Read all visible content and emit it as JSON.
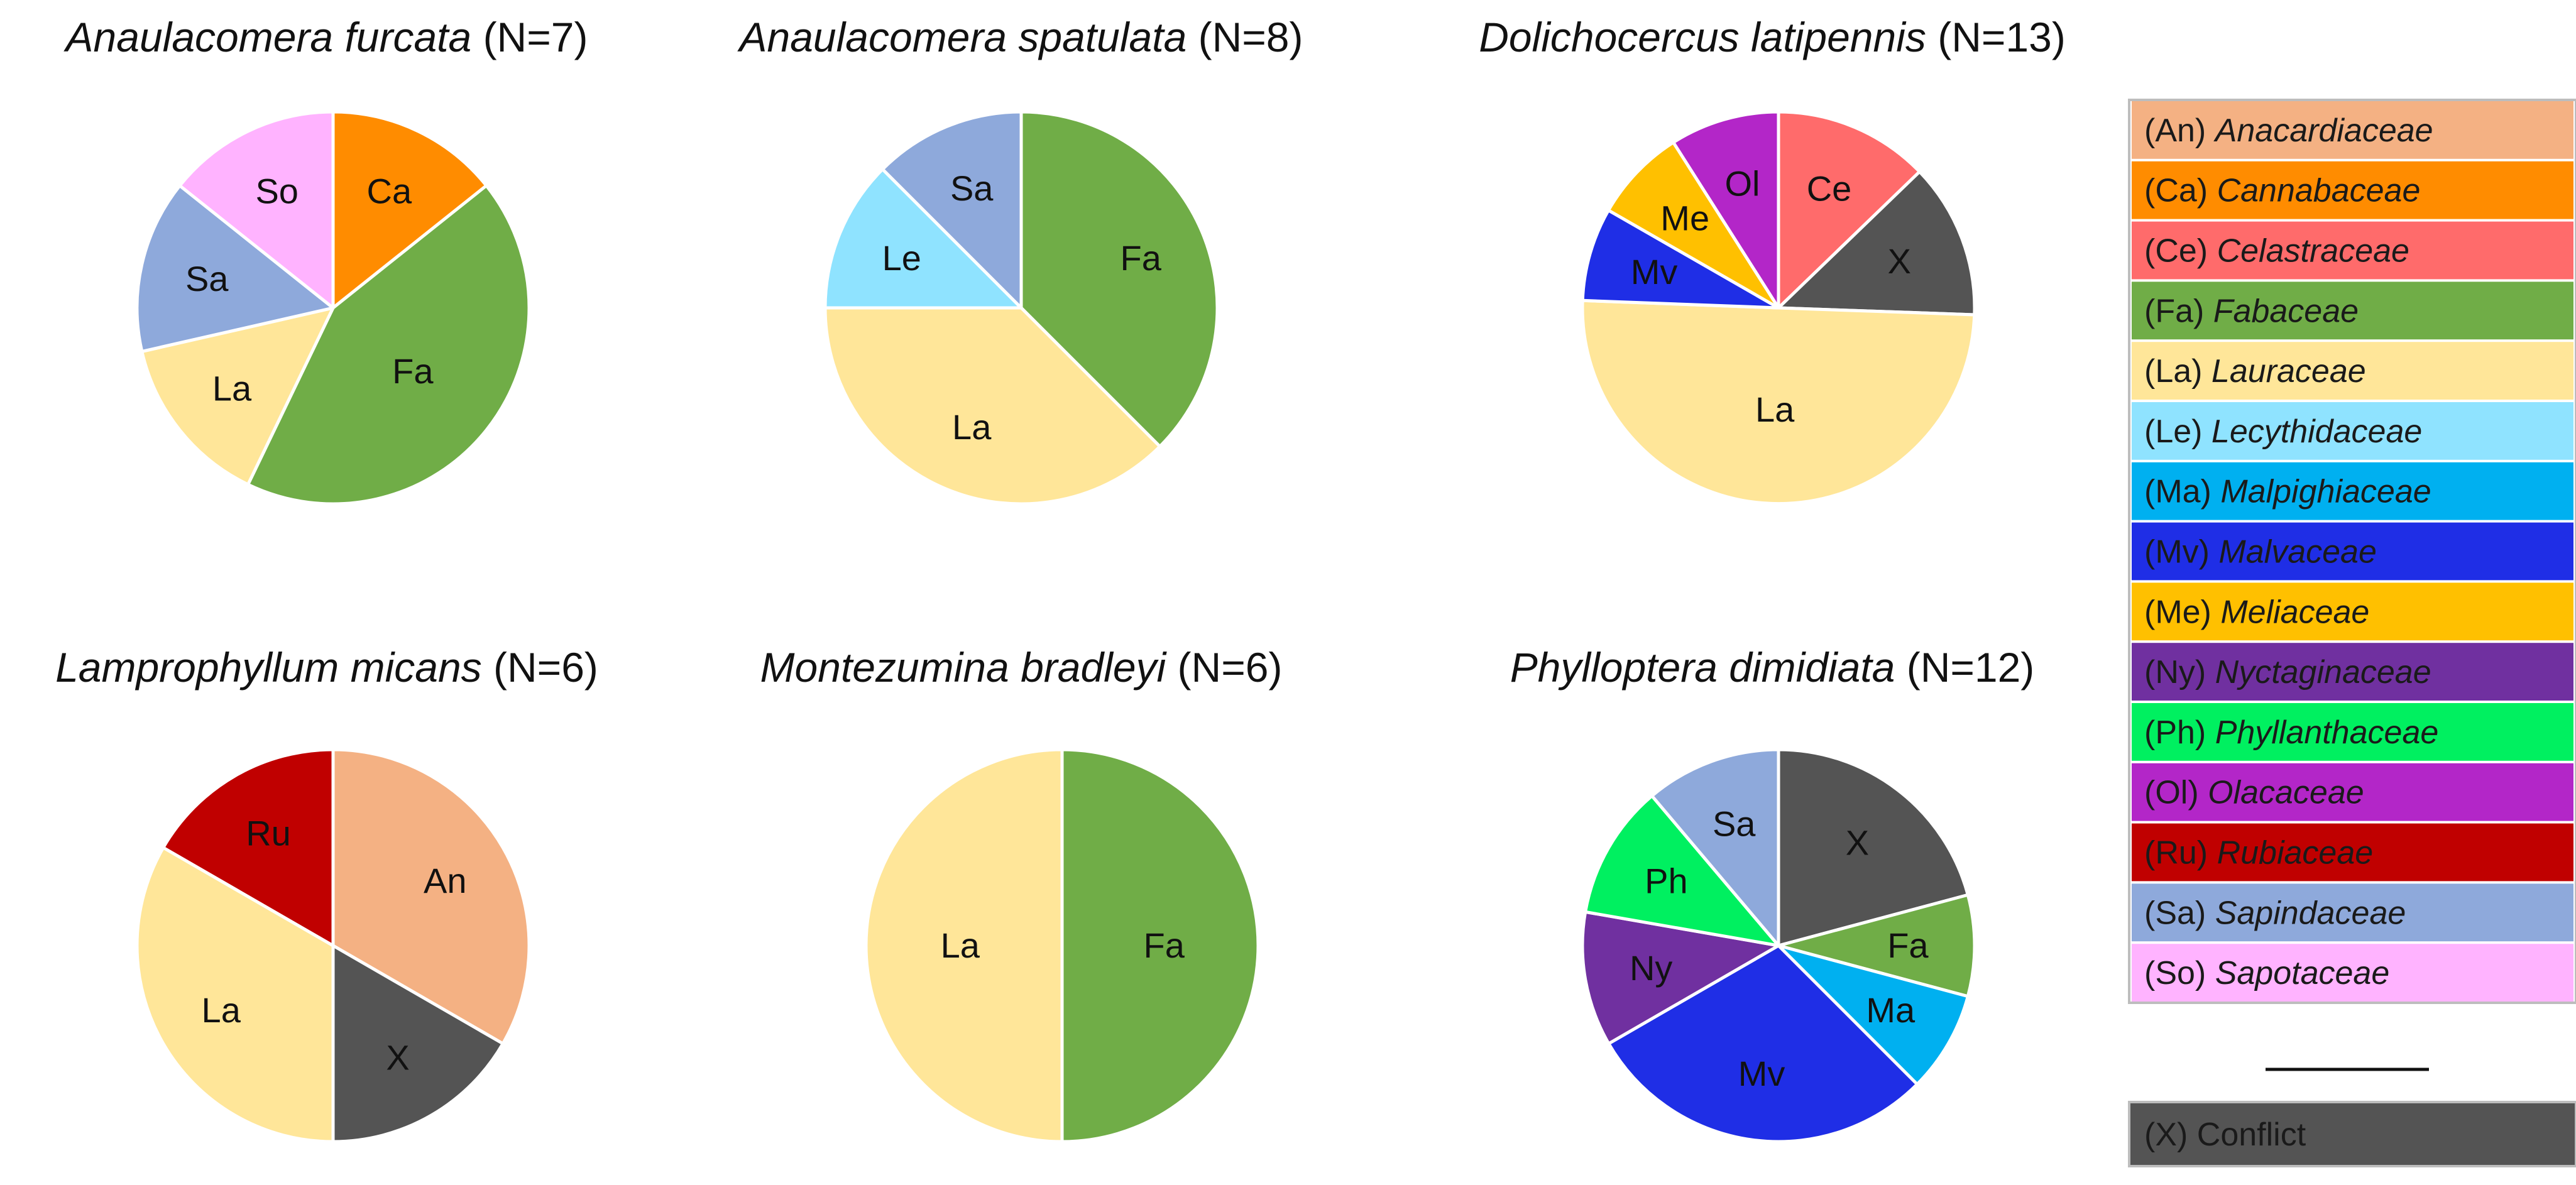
{
  "chart_data": [
    {
      "type": "pie",
      "title": "Anaulacomera furcata",
      "n_label": "(N=7)",
      "slices": [
        {
          "code": "Ca",
          "value": 1
        },
        {
          "code": "Fa",
          "value": 3
        },
        {
          "code": "La",
          "value": 1
        },
        {
          "code": "Sa",
          "value": 1
        },
        {
          "code": "So",
          "value": 1
        }
      ]
    },
    {
      "type": "pie",
      "title": "Anaulacomera spatulata",
      "n_label": "(N=8)",
      "slices": [
        {
          "code": "Fa",
          "value": 3
        },
        {
          "code": "La",
          "value": 3
        },
        {
          "code": "Le",
          "value": 1
        },
        {
          "code": "Sa",
          "value": 1
        }
      ]
    },
    {
      "type": "pie",
      "title": "Dolichocercus latipennis",
      "n_label": "(N=13)",
      "slices": [
        {
          "code": "Ce",
          "value": 1.66
        },
        {
          "code": "X",
          "value": 1.66
        },
        {
          "code": "La",
          "value": 6.5
        },
        {
          "code": "Mv",
          "value": 1
        },
        {
          "code": "Me",
          "value": 1
        },
        {
          "code": "Ol",
          "value": 1.17
        }
      ]
    },
    {
      "type": "pie",
      "title": "Lamprophyllum micans",
      "n_label": "(N=6)",
      "slices": [
        {
          "code": "An",
          "value": 2
        },
        {
          "code": "X",
          "value": 1
        },
        {
          "code": "La",
          "value": 2
        },
        {
          "code": "Ru",
          "value": 1
        }
      ]
    },
    {
      "type": "pie",
      "title": "Montezumina bradleyi",
      "n_label": "(N=6)",
      "slices": [
        {
          "code": "Fa",
          "value": 3
        },
        {
          "code": "La",
          "value": 3
        }
      ]
    },
    {
      "type": "pie",
      "title": "Phylloptera dimidiata",
      "n_label": "(N=12)",
      "slices": [
        {
          "code": "X",
          "value": 2.5
        },
        {
          "code": "Fa",
          "value": 1
        },
        {
          "code": "Ma",
          "value": 1
        },
        {
          "code": "Mv",
          "value": 3.5
        },
        {
          "code": "Ny",
          "value": 1.33
        },
        {
          "code": "Ph",
          "value": 1.33
        },
        {
          "code": "Sa",
          "value": 1.34
        }
      ]
    }
  ],
  "legend": {
    "items": [
      {
        "code": "(An)",
        "family": "Anacardiaceae",
        "color": "#F4B183"
      },
      {
        "code": "(Ca)",
        "family": "Cannabaceae",
        "color": "#FF8C00"
      },
      {
        "code": "(Ce)",
        "family": "Celastraceae",
        "color": "#FF6B6B"
      },
      {
        "code": "(Fa)",
        "family": "Fabaceae",
        "color": "#70AD47"
      },
      {
        "code": "(La)",
        "family": "Lauraceae",
        "color": "#FFE699"
      },
      {
        "code": "(Le)",
        "family": "Lecythidaceae",
        "color": "#8FE3FF"
      },
      {
        "code": "(Ma)",
        "family": "Malpighiaceae",
        "color": "#00B0F0"
      },
      {
        "code": "(Mv)",
        "family": "Malvaceae",
        "color": "#1F2EE6"
      },
      {
        "code": "(Me)",
        "family": "Meliaceae",
        "color": "#FFC000"
      },
      {
        "code": "(Ny)",
        "family": "Nyctaginaceae",
        "color": "#7030A0"
      },
      {
        "code": "(Ph)",
        "family": "Phyllanthaceae",
        "color": "#00F060"
      },
      {
        "code": "(Ol)",
        "family": "Olacaceae",
        "color": "#B326C8"
      },
      {
        "code": "(Ru)",
        "family": "Rubiaceae",
        "color": "#C00000"
      },
      {
        "code": "(Sa)",
        "family": "Sapindaceae",
        "color": "#8EA9DB"
      },
      {
        "code": "(So)",
        "family": "Sapotaceae",
        "color": "#FFB3FF"
      }
    ],
    "conflict": {
      "code": "(X)",
      "label": "Conflict",
      "color": "#545454"
    }
  }
}
